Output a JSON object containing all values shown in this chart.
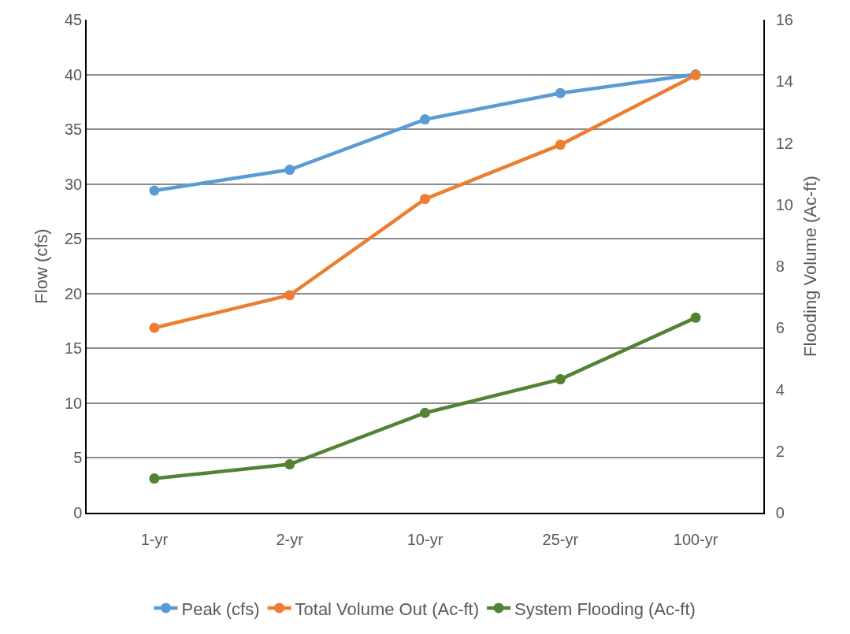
{
  "chart_data": {
    "type": "line",
    "xlabel": null,
    "ylabel": "Flow (cfs)",
    "y2label": "Flooding Volume (Ac-ft)",
    "categories": [
      "1-yr",
      "2-yr",
      "10-yr",
      "25-yr",
      "100-yr"
    ],
    "series": [
      {
        "name": "Peak (cfs)",
        "color": "#5b9bd5",
        "values": [
          29.4,
          31.3,
          35.9,
          38.3,
          40.0
        ]
      },
      {
        "name": "Total Volume Out (Ac-ft)",
        "color": "#ed7d31",
        "axis": "y2",
        "values": [
          6.0,
          7.06,
          10.18,
          11.94,
          14.2
        ]
      },
      {
        "name": "System Flooding (Ac-ft)",
        "color": "#548235",
        "axis": "y2",
        "values": [
          1.11,
          1.57,
          3.24,
          4.33,
          6.33
        ]
      }
    ],
    "ylim": [
      0,
      45
    ],
    "yticks": [
      0,
      5,
      10,
      15,
      20,
      25,
      30,
      35,
      40,
      45
    ],
    "y2lim": [
      0,
      16
    ],
    "y2ticks": [
      0,
      2,
      4,
      6,
      8,
      10,
      12,
      14,
      16
    ],
    "grid": "y",
    "legend": "bottom",
    "marker": "circle",
    "line_style": "solid"
  }
}
